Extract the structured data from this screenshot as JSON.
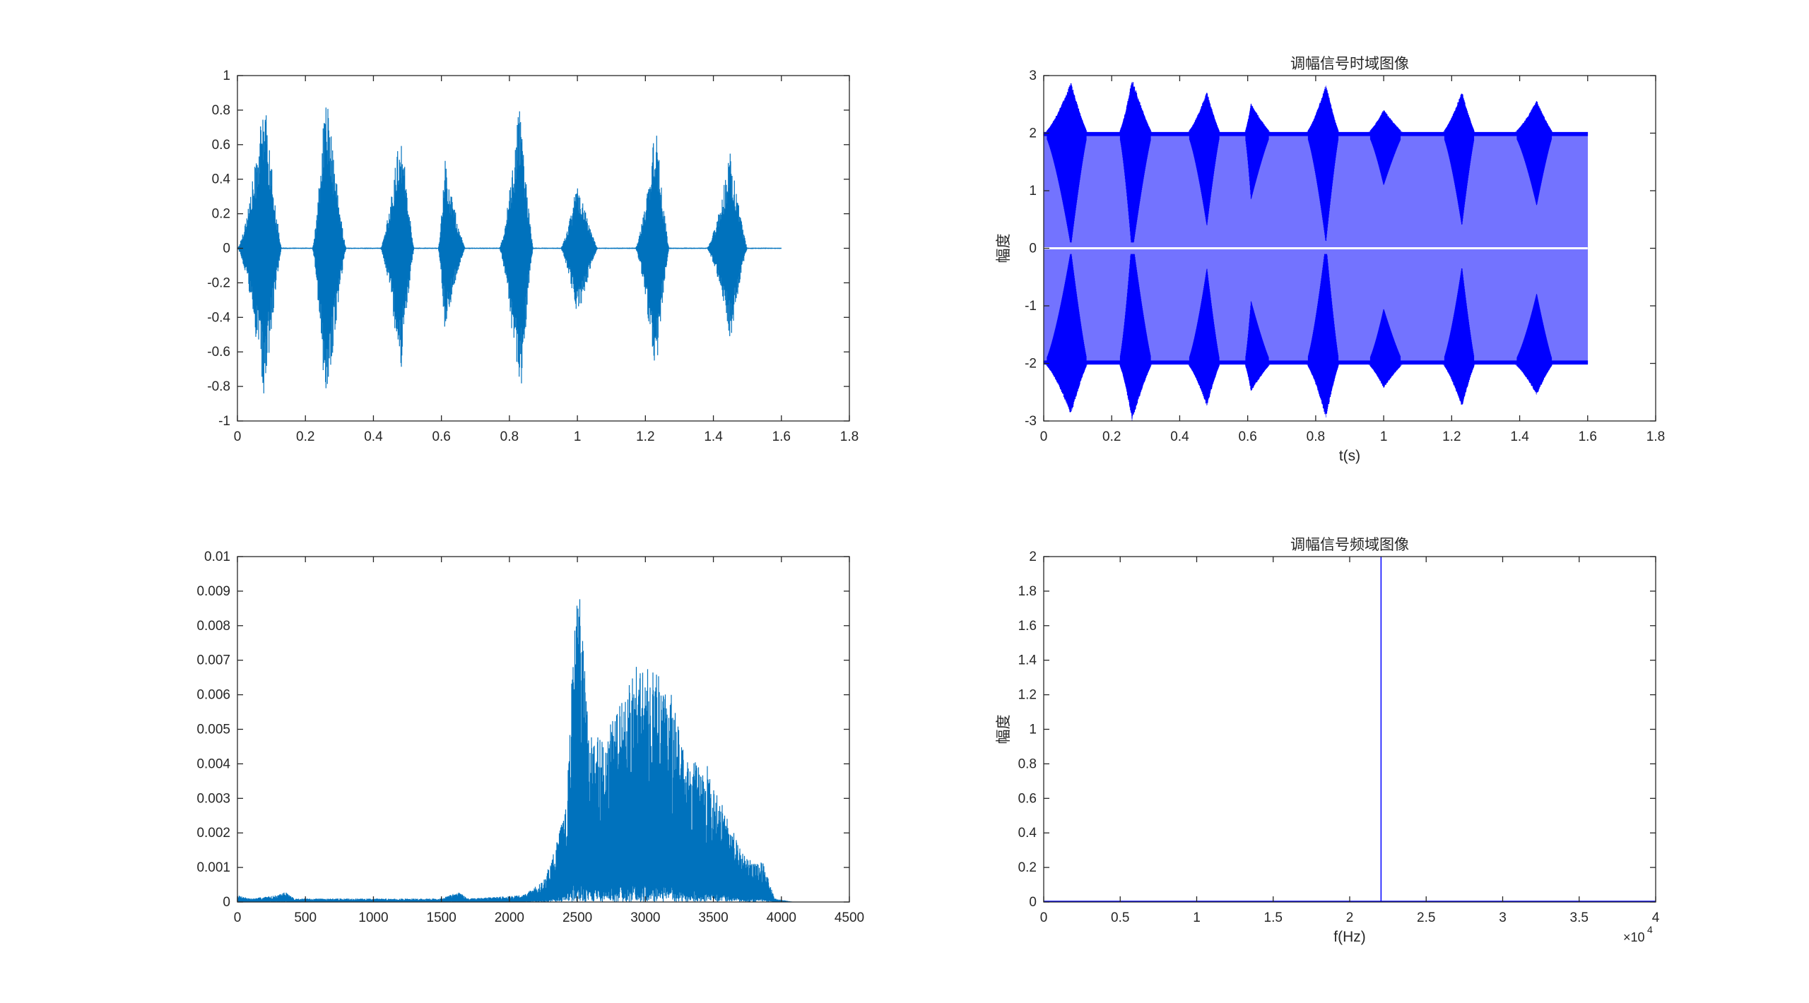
{
  "window": {
    "background": "#ffffff"
  },
  "chart_data": [
    {
      "id": "time-original",
      "type": "line",
      "color": "#0072bd",
      "title": "",
      "xlabel": "",
      "ylabel": "",
      "xlim": [
        0,
        1.8
      ],
      "ylim": [
        -1,
        1
      ],
      "xticks": [
        0,
        0.2,
        0.4,
        0.6,
        0.8,
        1,
        1.2,
        1.4,
        1.6,
        1.8
      ],
      "yticks": [
        -1,
        -0.8,
        -0.6,
        -0.4,
        -0.2,
        0,
        0.2,
        0.4,
        0.6,
        0.8,
        1
      ],
      "xtick_labels": [
        "0",
        "0.2",
        "0.4",
        "0.6",
        "0.8",
        "1",
        "1.2",
        "1.4",
        "1.6",
        "1.8"
      ],
      "ytick_labels": [
        "-1",
        "-0.8",
        "-0.6",
        "-0.4",
        "-0.2",
        "0",
        "0.2",
        "0.4",
        "0.6",
        "0.8",
        "1"
      ],
      "signal_end": 1.6,
      "bursts": [
        {
          "start": 0.0,
          "peak": 0.08,
          "end": 0.13,
          "pos": 0.89,
          "neg": -0.89
        },
        {
          "start": 0.22,
          "peak": 0.26,
          "end": 0.32,
          "pos": 0.95,
          "neg": -1.0
        },
        {
          "start": 0.42,
          "peak": 0.48,
          "end": 0.52,
          "pos": 0.73,
          "neg": -0.75
        },
        {
          "start": 0.59,
          "peak": 0.61,
          "end": 0.67,
          "pos": 0.52,
          "neg": -0.49
        },
        {
          "start": 0.77,
          "peak": 0.83,
          "end": 0.87,
          "pos": 0.86,
          "neg": -0.95
        },
        {
          "start": 0.95,
          "peak": 1.0,
          "end": 1.06,
          "pos": 0.41,
          "neg": -0.43
        },
        {
          "start": 1.17,
          "peak": 1.23,
          "end": 1.27,
          "pos": 0.73,
          "neg": -0.76
        },
        {
          "start": 1.38,
          "peak": 1.45,
          "end": 1.5,
          "pos": 0.57,
          "neg": -0.55
        }
      ]
    },
    {
      "id": "time-am",
      "type": "line",
      "color": "#0000ff",
      "title": "调幅信号时域图像",
      "xlabel": "t(s)",
      "ylabel": "幅度",
      "xlim": [
        0,
        1.8
      ],
      "ylim": [
        -3,
        3
      ],
      "xticks": [
        0,
        0.2,
        0.4,
        0.6,
        0.8,
        1,
        1.2,
        1.4,
        1.6,
        1.8
      ],
      "yticks": [
        -3,
        -2,
        -1,
        0,
        1,
        2,
        3
      ],
      "xtick_labels": [
        "0",
        "0.2",
        "0.4",
        "0.6",
        "0.8",
        "1",
        "1.2",
        "1.4",
        "1.6",
        "1.8"
      ],
      "ytick_labels": [
        "-3",
        "-2",
        "-1",
        "0",
        "1",
        "2",
        "3"
      ],
      "signal_end": 1.6,
      "carrier_offset": 2,
      "envelope_peaks": [
        {
          "t": 0.08,
          "pos": 2.89,
          "neg": -2.89
        },
        {
          "t": 0.26,
          "pos": 2.95,
          "neg": -2.95
        },
        {
          "t": 0.46,
          "pos": 2.73,
          "neg": -2.75
        },
        {
          "t": 0.64,
          "pos": 2.52,
          "neg": -2.49
        },
        {
          "t": 0.83,
          "pos": 2.86,
          "neg": -2.85
        },
        {
          "t": 1.02,
          "pos": 2.41,
          "neg": -2.43
        },
        {
          "t": 1.23,
          "pos": 2.73,
          "neg": -2.76
        },
        {
          "t": 1.45,
          "pos": 2.57,
          "neg": -2.55
        }
      ]
    },
    {
      "id": "spectrum-original",
      "type": "line",
      "color": "#0072bd",
      "title": "",
      "xlabel": "",
      "ylabel": "",
      "xlim": [
        0,
        4500
      ],
      "ylim": [
        0,
        0.01
      ],
      "xticks": [
        0,
        500,
        1000,
        1500,
        2000,
        2500,
        3000,
        3500,
        4000,
        4500
      ],
      "yticks": [
        0,
        0.001,
        0.002,
        0.003,
        0.004,
        0.005,
        0.006,
        0.007,
        0.008,
        0.009,
        0.01
      ],
      "xtick_labels": [
        "0",
        "500",
        "1000",
        "1500",
        "2000",
        "2500",
        "3000",
        "3500",
        "4000",
        "4500"
      ],
      "ytick_labels": [
        "0",
        "0.001",
        "0.002",
        "0.003",
        "0.004",
        "0.005",
        "0.006",
        "0.007",
        "0.008",
        "0.009",
        "0.01"
      ],
      "envelope": [
        [
          0,
          0.0002
        ],
        [
          100,
          0.0001
        ],
        [
          300,
          0.0002
        ],
        [
          350,
          0.0003
        ],
        [
          420,
          0.0001
        ],
        [
          1500,
          0.0001
        ],
        [
          1620,
          0.0003
        ],
        [
          1700,
          0.0001
        ],
        [
          2100,
          0.0002
        ],
        [
          2250,
          0.0006
        ],
        [
          2330,
          0.0015
        ],
        [
          2420,
          0.003
        ],
        [
          2480,
          0.0083
        ],
        [
          2520,
          0.009
        ],
        [
          2580,
          0.005
        ],
        [
          2700,
          0.0048
        ],
        [
          2850,
          0.006
        ],
        [
          2950,
          0.0072
        ],
        [
          3050,
          0.0068
        ],
        [
          3200,
          0.006
        ],
        [
          3300,
          0.0041
        ],
        [
          3450,
          0.004
        ],
        [
          3600,
          0.0025
        ],
        [
          3700,
          0.0015
        ],
        [
          3800,
          0.0011
        ],
        [
          3860,
          0.0012
        ],
        [
          3950,
          0.0001
        ],
        [
          4096,
          0.0
        ]
      ]
    },
    {
      "id": "spectrum-am",
      "type": "line",
      "color": "#0000ff",
      "title": "调幅信号频域图像",
      "xlabel": "f(Hz)",
      "ylabel": "幅度",
      "xlim": [
        0,
        40000
      ],
      "ylim": [
        0,
        2
      ],
      "xticks": [
        0,
        5000,
        10000,
        15000,
        20000,
        25000,
        30000,
        35000,
        40000
      ],
      "yticks": [
        0,
        0.2,
        0.4,
        0.6,
        0.8,
        1,
        1.2,
        1.4,
        1.6,
        1.8,
        2
      ],
      "xtick_labels": [
        "0",
        "0.5",
        "1",
        "1.5",
        "2",
        "2.5",
        "3",
        "3.5",
        "4"
      ],
      "ytick_labels": [
        "0",
        "0.2",
        "0.4",
        "0.6",
        "0.8",
        "1",
        "1.2",
        "1.4",
        "1.6",
        "1.8",
        "2"
      ],
      "x_exponent_base": "×10",
      "x_exponent_power": "4",
      "carrier_frequency": 22050,
      "carrier_amplitude": 2
    }
  ]
}
